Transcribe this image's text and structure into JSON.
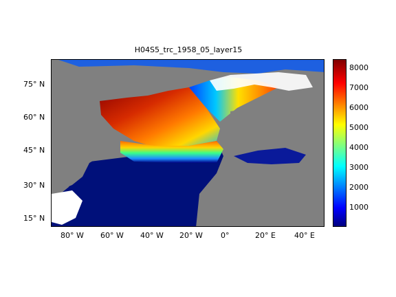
{
  "title": "H04S5_trc_1958_05_layer15",
  "axes": {
    "lat_ticks": [
      "75° N",
      "60° N",
      "45° N",
      "30° N",
      "15° N"
    ],
    "lon_ticks": [
      "80° W",
      "60° W",
      "40° W",
      "20° W",
      "0°",
      "20° E",
      "40° E"
    ]
  },
  "colorbar": {
    "colormap": "jet",
    "range": [
      0,
      8500
    ],
    "tick_labels": [
      "8000",
      "7000",
      "6000",
      "5000",
      "4000",
      "3000",
      "2000",
      "1000"
    ]
  },
  "colors": {
    "land": "#808080",
    "missing": "#ffffff",
    "low": "#00007f",
    "high": "#7f0000"
  }
}
